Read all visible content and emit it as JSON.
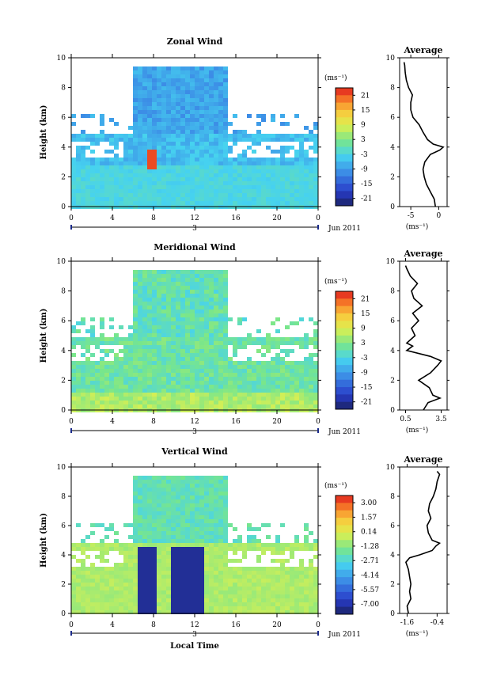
{
  "chart_data": [
    {
      "type": "heatmap",
      "title": "Zonal Wind",
      "ylabel": "Height (km)",
      "ylim": [
        0,
        10
      ],
      "x_ticks": [
        "0",
        "4",
        "8",
        "12",
        "16",
        "20",
        "0"
      ],
      "date_marker": "3",
      "date_label": "Jun 2011",
      "xlabel": "",
      "colorbar": {
        "unit": "(ms⁻¹)",
        "ticks": [
          "21",
          "15",
          "9",
          "3",
          "-3",
          "-9",
          "-15",
          "-21"
        ],
        "range": [
          -24,
          24
        ]
      },
      "profile": {
        "title": "Average",
        "xlabel": "(ms⁻¹)",
        "x_ticks": [
          "-5",
          "0"
        ],
        "xlim": [
          -7,
          1.5
        ],
        "height_km": [
          0.0,
          0.5,
          1.0,
          1.5,
          2.0,
          2.5,
          3.0,
          3.5,
          3.8,
          4.0,
          4.2,
          4.5,
          5.0,
          5.5,
          6.0,
          6.5,
          7.0,
          7.5,
          8.0,
          8.5,
          9.0,
          9.5,
          9.7
        ],
        "value": [
          -0.6,
          -0.8,
          -1.5,
          -2.2,
          -2.6,
          -2.8,
          -2.5,
          -1.5,
          0.2,
          0.8,
          -1.0,
          -2.0,
          -2.8,
          -3.5,
          -4.6,
          -5.0,
          -5.0,
          -4.7,
          -5.4,
          -5.8,
          -6.0,
          -6.1,
          -6.2
        ]
      }
    },
    {
      "type": "heatmap",
      "title": "Meridional Wind",
      "ylabel": "Height (km)",
      "ylim": [
        0,
        10
      ],
      "x_ticks": [
        "0",
        "4",
        "8",
        "12",
        "16",
        "20",
        "0"
      ],
      "date_marker": "3",
      "date_label": "Jun 2011",
      "xlabel": "",
      "colorbar": {
        "unit": "(ms⁻¹)",
        "ticks": [
          "21",
          "15",
          "9",
          "3",
          "-3",
          "-9",
          "-15",
          "-21"
        ],
        "range": [
          -24,
          24
        ]
      },
      "profile": {
        "title": "Average",
        "xlabel": "(ms⁻¹)",
        "x_ticks": [
          "0.5",
          "3.5"
        ],
        "xlim": [
          0,
          4
        ],
        "height_km": [
          0.0,
          0.5,
          0.8,
          1.0,
          1.5,
          2.0,
          2.5,
          3.0,
          3.3,
          3.6,
          4.0,
          4.3,
          4.5,
          5.0,
          5.5,
          6.0,
          6.5,
          7.0,
          7.5,
          8.0,
          8.5,
          9.0,
          9.5,
          9.7
        ],
        "value": [
          2.0,
          2.4,
          3.4,
          2.8,
          2.5,
          1.6,
          2.6,
          3.2,
          3.5,
          2.6,
          0.6,
          1.1,
          0.6,
          1.3,
          1.0,
          1.6,
          1.1,
          1.9,
          1.2,
          1.0,
          1.5,
          0.9,
          0.6,
          0.5
        ]
      }
    },
    {
      "type": "heatmap",
      "title": "Vertical Wind",
      "ylabel": "Height (km)",
      "ylim": [
        0,
        10
      ],
      "x_ticks": [
        "0",
        "4",
        "8",
        "12",
        "16",
        "20",
        "0"
      ],
      "date_marker": "3",
      "date_label": "Jun 2011",
      "xlabel": "Local Time",
      "colorbar": {
        "unit": "(ms⁻¹)",
        "ticks": [
          "3.00",
          "1.57",
          "0.14",
          "-1.28",
          "-2.71",
          "-4.14",
          "-5.57",
          "-7.00"
        ],
        "range": [
          -8.0,
          3.71
        ]
      },
      "profile": {
        "title": "Average",
        "xlabel": "(ms⁻¹)",
        "x_ticks": [
          "-1.6",
          "-0.4"
        ],
        "xlim": [
          -1.9,
          0.0
        ],
        "height_km": [
          0.0,
          0.5,
          1.0,
          1.5,
          2.0,
          2.5,
          3.0,
          3.5,
          3.8,
          4.0,
          4.3,
          4.6,
          4.8,
          5.0,
          5.5,
          6.0,
          6.5,
          7.0,
          7.5,
          8.0,
          8.5,
          9.0,
          9.5,
          9.7
        ],
        "value": [
          -1.55,
          -1.6,
          -1.45,
          -1.5,
          -1.45,
          -1.5,
          -1.55,
          -1.65,
          -1.5,
          -1.1,
          -0.6,
          -0.45,
          -0.3,
          -0.6,
          -0.75,
          -0.8,
          -0.65,
          -0.75,
          -0.7,
          -0.55,
          -0.45,
          -0.4,
          -0.3,
          -0.4
        ]
      }
    }
  ]
}
